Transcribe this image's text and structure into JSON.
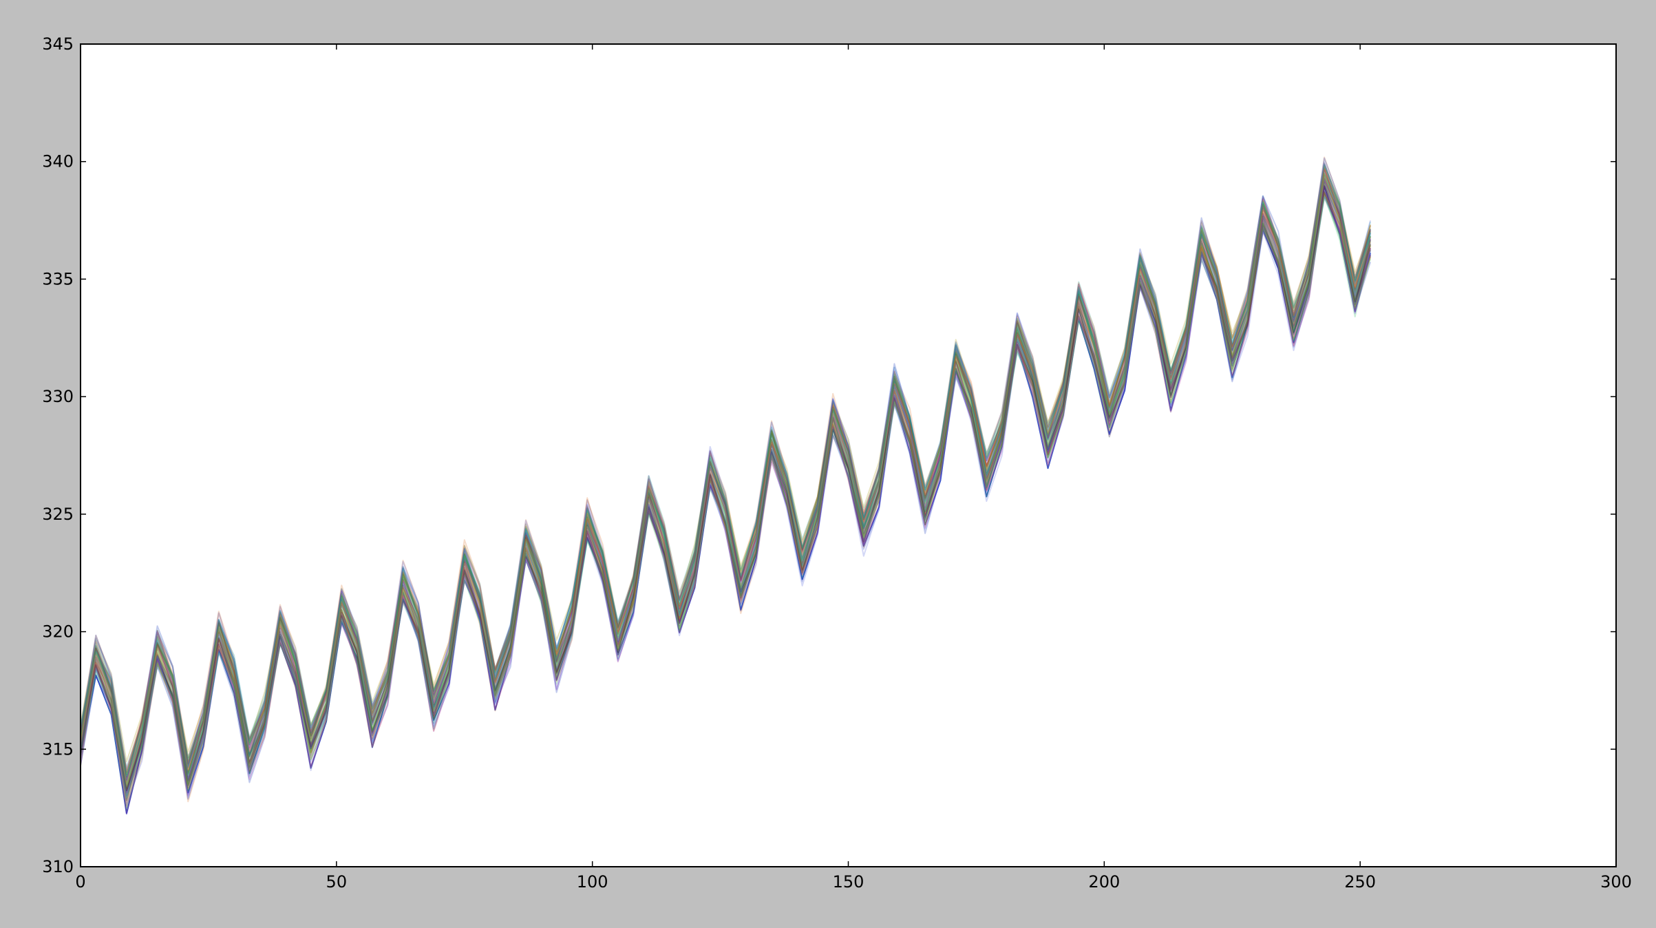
{
  "window": {
    "background": "#bfbfbf"
  },
  "chart_data": {
    "type": "line",
    "title": "",
    "xlabel": "",
    "ylabel": "",
    "xlim": [
      0,
      300
    ],
    "ylim": [
      310,
      345
    ],
    "grid": false,
    "legend": "none",
    "x_ticks": [
      "0",
      "50",
      "100",
      "150",
      "200",
      "250",
      "300"
    ],
    "y_ticks": [
      "310",
      "315",
      "320",
      "325",
      "330",
      "335",
      "340",
      "345"
    ],
    "x": [
      0,
      3,
      6,
      9,
      12,
      15,
      18,
      21,
      24,
      27,
      30,
      33,
      36,
      39,
      42,
      45,
      48,
      51,
      54,
      57,
      60,
      63,
      66,
      69,
      72,
      75,
      78,
      81,
      84,
      87,
      90,
      93,
      96,
      99,
      102,
      105,
      108,
      111,
      114,
      117,
      120,
      123,
      126,
      129,
      132,
      135,
      138,
      141,
      144,
      147,
      150,
      153,
      156,
      159,
      162,
      165,
      168,
      171,
      174,
      177,
      180,
      183,
      186,
      189,
      192,
      195,
      198,
      201,
      204,
      207,
      210,
      213,
      216,
      219,
      222,
      225,
      228,
      231,
      234,
      237,
      240,
      243,
      246,
      249,
      252
    ],
    "series_count": 60,
    "series_style": "semi-transparent thin lines, many colors",
    "series": [
      {
        "name": "",
        "values": [
          315.2,
          318.9,
          317.3,
          313.3,
          315.5,
          319.3,
          317.6,
          313.8,
          315.9,
          319.9,
          318.1,
          314.6,
          316.4,
          320.2,
          318.4,
          315.2,
          317.0,
          321.1,
          319.3,
          316.0,
          317.8,
          322.0,
          320.3,
          316.8,
          318.6,
          322.9,
          321.1,
          317.6,
          319.5,
          323.8,
          322.0,
          318.5,
          320.5,
          324.7,
          322.8,
          319.6,
          321.6,
          325.8,
          323.8,
          320.7,
          322.7,
          326.9,
          325.0,
          321.8,
          323.8,
          328.0,
          326.0,
          323.0,
          325.0,
          329.1,
          327.3,
          324.3,
          326.2,
          330.4,
          328.5,
          325.3,
          327.3,
          331.6,
          329.7,
          326.6,
          328.5,
          332.7,
          330.8,
          327.9,
          329.9,
          334.0,
          332.0,
          329.2,
          331.1,
          335.4,
          333.5,
          330.4,
          332.4,
          336.6,
          334.8,
          331.7,
          333.6,
          337.8,
          336.1,
          333.0,
          335.0,
          339.2,
          337.5,
          334.3,
          336.6
        ]
      }
    ],
    "colors": [
      "#1f3fbf",
      "#2a8a2a",
      "#c03030",
      "#20a0a0",
      "#a020a0",
      "#b0a020",
      "#303030",
      "#e08040",
      "#6070e0",
      "#40c070"
    ]
  }
}
